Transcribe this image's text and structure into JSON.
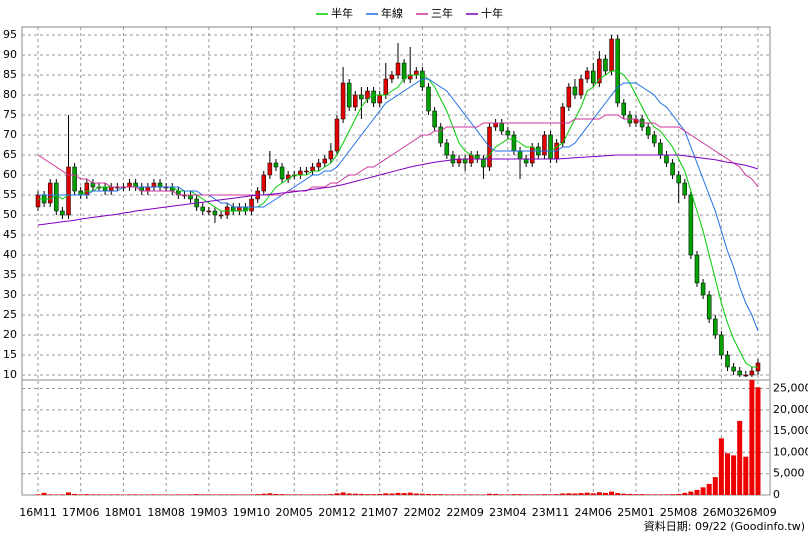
{
  "chart_data": {
    "type": "candlestick",
    "categories": [
      "16M11",
      null,
      null,
      null,
      null,
      null,
      null,
      "17M06",
      null,
      null,
      null,
      null,
      null,
      null,
      "18M01",
      null,
      null,
      null,
      null,
      null,
      null,
      "18M08",
      null,
      null,
      null,
      null,
      null,
      null,
      "19M03",
      null,
      null,
      null,
      null,
      null,
      null,
      "19M10",
      null,
      null,
      null,
      null,
      null,
      null,
      "20M05",
      null,
      null,
      null,
      null,
      null,
      null,
      "20M12",
      null,
      null,
      null,
      null,
      null,
      null,
      "21M07",
      null,
      null,
      null,
      null,
      null,
      null,
      "22M02",
      null,
      null,
      null,
      null,
      null,
      null,
      "22M09",
      null,
      null,
      null,
      null,
      null,
      null,
      "23M04",
      null,
      null,
      null,
      null,
      null,
      null,
      "23M11",
      null,
      null,
      null,
      null,
      null,
      null,
      "24M06",
      null,
      null,
      null,
      null,
      null,
      null,
      "25M01",
      null,
      null,
      null,
      null,
      null,
      null,
      "25M08",
      null,
      null,
      null,
      null,
      null,
      null,
      "26M03",
      null,
      null,
      null,
      null,
      null,
      "26M09"
    ],
    "open": [
      52,
      55,
      53,
      58,
      51,
      50,
      62,
      56,
      55,
      58,
      57,
      57,
      56,
      57,
      57,
      57,
      58,
      57,
      56,
      57,
      58,
      57,
      57,
      56,
      55,
      55,
      54,
      52,
      51,
      51,
      50,
      50,
      52,
      51,
      52,
      51,
      54,
      56,
      60,
      63,
      62,
      59,
      60,
      60,
      61,
      61,
      62,
      63,
      64,
      66,
      74,
      83,
      77,
      80,
      79,
      81,
      78,
      80,
      84,
      85,
      88,
      84,
      85,
      86,
      82,
      76,
      72,
      68,
      65,
      63,
      64,
      63,
      65,
      64,
      62,
      72,
      73,
      71,
      70,
      66,
      64,
      63,
      67,
      65,
      70,
      64,
      68,
      77,
      82,
      80,
      84,
      86,
      83,
      89,
      86,
      94,
      78,
      75,
      73,
      74,
      72,
      70,
      68,
      65,
      63,
      60,
      58,
      55,
      40,
      33,
      30,
      24,
      20,
      15,
      12,
      11,
      10,
      10,
      11
    ],
    "high": [
      56,
      56,
      59,
      59,
      52,
      75,
      63,
      57,
      59,
      59,
      58,
      58,
      58,
      58,
      58,
      59,
      59,
      58,
      58,
      59,
      59,
      58,
      58,
      57,
      56,
      56,
      55,
      53,
      52,
      52,
      51,
      53,
      53,
      53,
      53,
      55,
      57,
      61,
      66,
      64,
      63,
      61,
      61,
      62,
      62,
      63,
      64,
      65,
      68,
      75,
      87,
      84,
      81,
      82,
      82,
      82,
      81,
      88,
      86,
      93,
      89,
      92,
      87,
      87,
      83,
      77,
      73,
      69,
      66,
      65,
      65,
      66,
      66,
      65,
      73,
      74,
      74,
      72,
      71,
      67,
      65,
      68,
      68,
      71,
      71,
      69,
      78,
      83,
      84,
      85,
      87,
      88,
      91,
      90,
      95,
      95,
      79,
      76,
      75,
      75,
      73,
      71,
      69,
      66,
      64,
      61,
      59,
      56,
      41,
      34,
      31,
      25,
      21,
      16,
      13,
      12,
      11,
      12,
      14
    ],
    "low": [
      51,
      52,
      52,
      50,
      49,
      49,
      55,
      54,
      54,
      56,
      56,
      55,
      55,
      56,
      56,
      56,
      56,
      55,
      55,
      56,
      56,
      56,
      55,
      54,
      54,
      53,
      51,
      50,
      50,
      48,
      49,
      49,
      50,
      50,
      50,
      50,
      53,
      55,
      59,
      61,
      58,
      58,
      59,
      59,
      60,
      60,
      61,
      62,
      63,
      65,
      73,
      76,
      76,
      74,
      78,
      77,
      77,
      79,
      83,
      84,
      83,
      83,
      84,
      81,
      75,
      71,
      67,
      64,
      62,
      62,
      61,
      62,
      63,
      59,
      61,
      71,
      70,
      69,
      65,
      59,
      62,
      62,
      64,
      64,
      63,
      63,
      67,
      76,
      79,
      79,
      83,
      82,
      82,
      85,
      85,
      77,
      74,
      72,
      72,
      71,
      69,
      67,
      64,
      62,
      59,
      53,
      54,
      39,
      32,
      29,
      23,
      19,
      14,
      11,
      10,
      9.5,
      9.5,
      9.5,
      10
    ],
    "close": [
      55,
      53,
      58,
      51,
      50,
      62,
      56,
      55,
      58,
      57,
      57,
      56,
      57,
      57,
      57,
      58,
      57,
      56,
      57,
      58,
      57,
      57,
      56,
      55,
      55,
      54,
      52,
      51,
      51,
      50,
      50,
      52,
      51,
      52,
      51,
      54,
      56,
      60,
      63,
      62,
      59,
      60,
      60,
      61,
      61,
      62,
      63,
      64,
      66,
      74,
      83,
      77,
      80,
      79,
      81,
      78,
      80,
      84,
      85,
      88,
      84,
      85,
      86,
      82,
      76,
      72,
      68,
      65,
      63,
      64,
      63,
      65,
      64,
      62,
      72,
      73,
      71,
      70,
      66,
      64,
      63,
      67,
      65,
      70,
      64,
      68,
      77,
      82,
      80,
      84,
      86,
      83,
      89,
      86,
      94,
      78,
      75,
      73,
      74,
      72,
      70,
      68,
      65,
      63,
      60,
      58,
      55,
      40,
      33,
      30,
      24,
      20,
      15,
      12,
      11,
      10,
      10,
      11,
      13
    ],
    "up_color": "#e00000",
    "down_color": "#00a000",
    "series": [
      {
        "name": "半年",
        "color": "#00cc00",
        "values": [
          54,
          54,
          54,
          55,
          54,
          55,
          55,
          55,
          56,
          56,
          57,
          57,
          57,
          57,
          57,
          57,
          57,
          57,
          57,
          57,
          57,
          57,
          57,
          56,
          56,
          56,
          55,
          54,
          53,
          52,
          51,
          51,
          51,
          51,
          51,
          52,
          52,
          53,
          55,
          57,
          58,
          59,
          60,
          60,
          60,
          61,
          61,
          62,
          63,
          65,
          68,
          71,
          74,
          77,
          79,
          80,
          80,
          80,
          81,
          82,
          84,
          85,
          85,
          85,
          84,
          82,
          79,
          76,
          72,
          68,
          66,
          65,
          64,
          64,
          65,
          67,
          68,
          69,
          69,
          68,
          67,
          67,
          66,
          66,
          66,
          67,
          68,
          71,
          74,
          77,
          81,
          82,
          84,
          85,
          86,
          86,
          85,
          83,
          80,
          77,
          74,
          72,
          71,
          69,
          67,
          64,
          61,
          56,
          51,
          46,
          40,
          34,
          28,
          23,
          19,
          16,
          13,
          12,
          12
        ]
      },
      {
        "name": "年線",
        "color": "#1e6ee6",
        "values": [
          55,
          55,
          55,
          55,
          55,
          55,
          55,
          55,
          55,
          56,
          56,
          56,
          56,
          56,
          57,
          57,
          57,
          57,
          57,
          57,
          57,
          57,
          57,
          57,
          56,
          56,
          56,
          55,
          55,
          54,
          53,
          53,
          52,
          52,
          52,
          52,
          52,
          52,
          53,
          54,
          55,
          56,
          57,
          58,
          59,
          60,
          60,
          61,
          61,
          62,
          64,
          66,
          68,
          70,
          72,
          74,
          76,
          78,
          79,
          80,
          81,
          82,
          83,
          84,
          84,
          83,
          82,
          81,
          79,
          77,
          75,
          73,
          71,
          69,
          67,
          66,
          66,
          66,
          66,
          66,
          66,
          66,
          66,
          66,
          66,
          66,
          67,
          67,
          68,
          70,
          72,
          74,
          76,
          78,
          80,
          82,
          83,
          83,
          83,
          82,
          81,
          80,
          78,
          77,
          75,
          73,
          71,
          67,
          63,
          59,
          55,
          51,
          46,
          41,
          37,
          32,
          28,
          25,
          21
        ]
      },
      {
        "name": "三年",
        "color": "#cc3399",
        "values": [
          65,
          64,
          63,
          62,
          61,
          60,
          60,
          59,
          59,
          58,
          58,
          58,
          57,
          57,
          57,
          57,
          57,
          56,
          56,
          56,
          56,
          56,
          56,
          55,
          55,
          55,
          55,
          55,
          55,
          55,
          55,
          55,
          55,
          55,
          55,
          55,
          55,
          55,
          55,
          55,
          55,
          56,
          56,
          56,
          56,
          57,
          57,
          57,
          58,
          58,
          59,
          60,
          60,
          61,
          62,
          62,
          63,
          64,
          65,
          66,
          67,
          68,
          69,
          70,
          70,
          71,
          71,
          72,
          72,
          72,
          72,
          72,
          72,
          73,
          73,
          73,
          73,
          73,
          73,
          73,
          73,
          73,
          73,
          73,
          73,
          73,
          73,
          73,
          74,
          74,
          74,
          74,
          74,
          75,
          75,
          75,
          74,
          74,
          74,
          73,
          73,
          73,
          72,
          72,
          72,
          72,
          71,
          70,
          69,
          68,
          67,
          66,
          65,
          64,
          63,
          62,
          60,
          59,
          57
        ]
      },
      {
        "name": "十年",
        "color": "#8000c0",
        "values": [
          47.5,
          47.7,
          47.9,
          48.1,
          48.3,
          48.5,
          48.7,
          49,
          49.2,
          49.4,
          49.6,
          49.8,
          50,
          50.2,
          50.5,
          50.7,
          51,
          51.2,
          51.4,
          51.6,
          51.8,
          52,
          52.2,
          52.4,
          52.6,
          52.8,
          53,
          53.2,
          53.4,
          53.6,
          53.8,
          54,
          54.2,
          54.4,
          54.6,
          54.8,
          55,
          55,
          55.2,
          55.3,
          55.5,
          55.6,
          55.8,
          56,
          56.2,
          56.4,
          56.6,
          56.8,
          57,
          57.3,
          57.6,
          58,
          58.4,
          58.8,
          59.2,
          59.6,
          60,
          60.4,
          60.8,
          61.2,
          61.6,
          62,
          62.3,
          62.6,
          62.9,
          63.2,
          63.4,
          63.6,
          63.8,
          64,
          64,
          64,
          64,
          64,
          64,
          64,
          64,
          64,
          64,
          64,
          64,
          64,
          64,
          64,
          64,
          64,
          64.1,
          64.2,
          64.3,
          64.4,
          64.5,
          64.6,
          64.7,
          64.8,
          64.9,
          65,
          65,
          65,
          65,
          65,
          65,
          65,
          65,
          65,
          65,
          65,
          64.8,
          64.6,
          64.4,
          64.2,
          64,
          63.8,
          63.5,
          63.2,
          63,
          62.7,
          62.4,
          62,
          61.5
        ]
      }
    ],
    "volume": {
      "color": "#ee0000",
      "axis": "y2",
      "values": [
        150,
        500,
        150,
        120,
        150,
        600,
        250,
        150,
        200,
        150,
        150,
        120,
        150,
        150,
        120,
        150,
        150,
        120,
        120,
        150,
        120,
        120,
        120,
        150,
        120,
        150,
        200,
        150,
        150,
        120,
        150,
        150,
        150,
        120,
        120,
        150,
        200,
        300,
        400,
        250,
        200,
        150,
        150,
        150,
        120,
        150,
        150,
        150,
        200,
        400,
        600,
        350,
        300,
        250,
        200,
        200,
        250,
        400,
        350,
        500,
        450,
        550,
        350,
        300,
        250,
        200,
        200,
        150,
        150,
        150,
        150,
        150,
        120,
        120,
        300,
        250,
        150,
        150,
        200,
        200,
        150,
        150,
        150,
        200,
        150,
        200,
        350,
        400,
        350,
        450,
        550,
        400,
        650,
        500,
        800,
        450,
        300,
        250,
        200,
        200,
        150,
        150,
        150,
        150,
        200,
        250,
        500,
        800,
        1200,
        1800,
        2600,
        4200,
        13300,
        9800,
        9300,
        17400,
        9000,
        27000,
        25300
      ]
    },
    "ylim": [
      9,
      97
    ],
    "yticks": [
      10,
      15,
      20,
      25,
      30,
      35,
      40,
      45,
      50,
      55,
      60,
      65,
      70,
      75,
      80,
      85,
      90,
      95
    ],
    "y2lim": [
      0,
      27000
    ],
    "y2ticks": [
      0,
      {
        "value": 5000,
        "label": "5,000"
      },
      {
        "value": 10000,
        "label": "10,000"
      },
      {
        "value": 15000,
        "label": "15,000"
      },
      {
        "value": 20000,
        "label": "20,000"
      },
      {
        "value": 25000,
        "label": "25,000"
      }
    ],
    "grid": true,
    "legend": "top",
    "source": "資料日期: 09/22 (Goodinfo.tw)"
  }
}
